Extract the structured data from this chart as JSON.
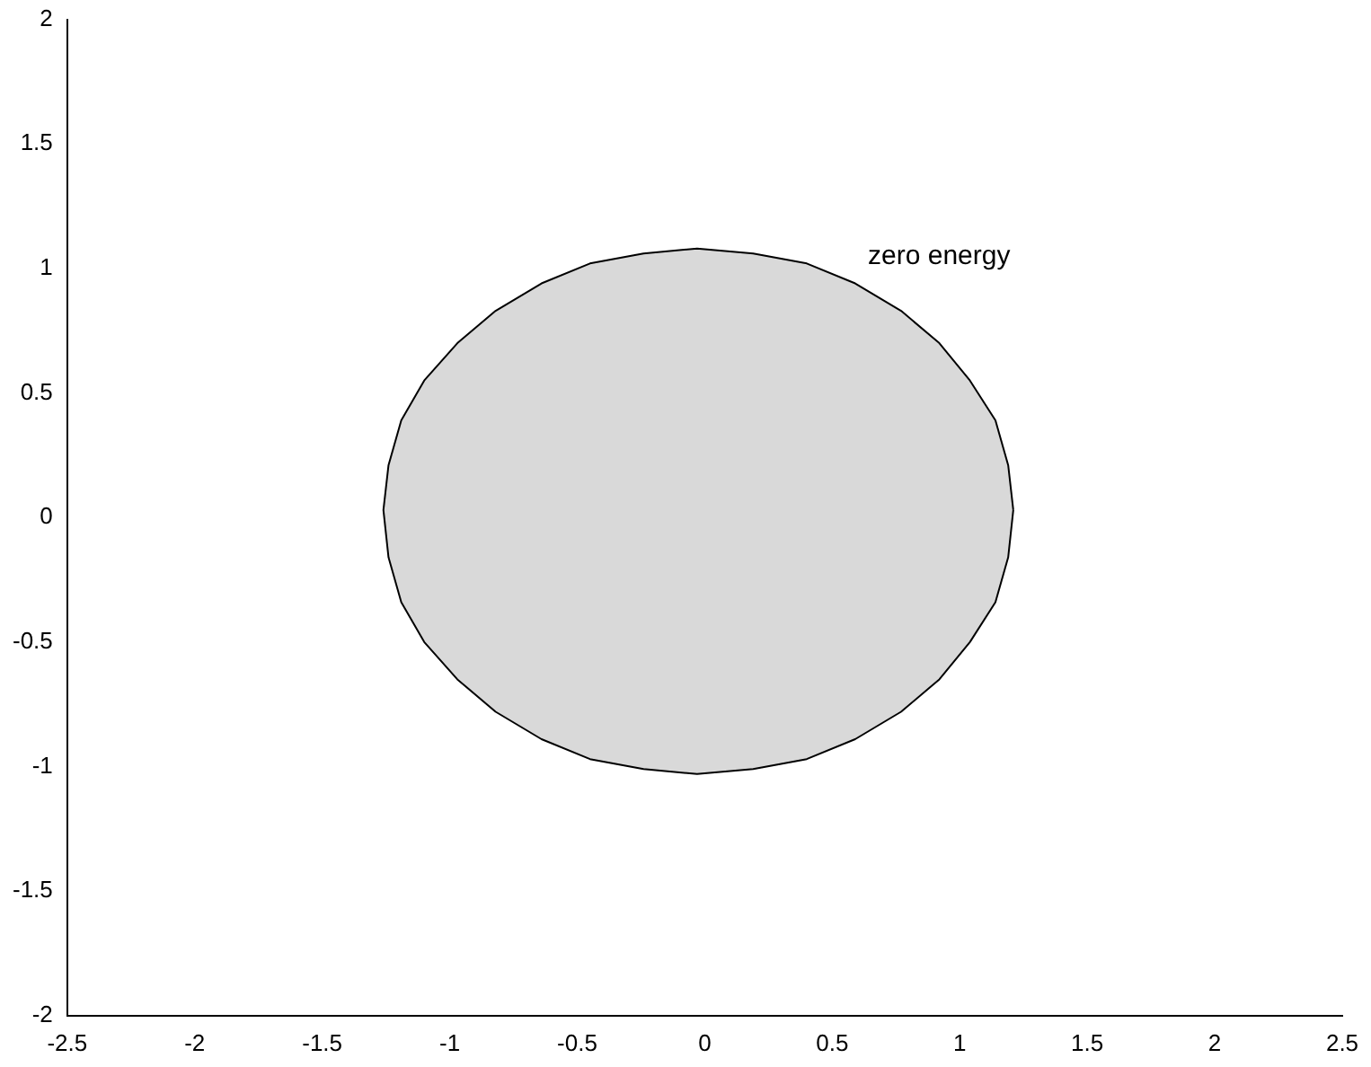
{
  "chart_data": {
    "type": "area",
    "x": [
      1.21,
      1.19,
      1.14,
      1.04,
      0.92,
      0.77,
      0.59,
      0.4,
      0.19,
      -0.03,
      -0.24,
      -0.45,
      -0.64,
      -0.82,
      -0.97,
      -1.1,
      -1.19,
      -1.24,
      -1.26,
      -1.24,
      -1.19,
      -1.1,
      -0.97,
      -0.82,
      -0.64,
      -0.45,
      -0.24,
      -0.03,
      0.19,
      0.4,
      0.59,
      0.77,
      0.92,
      1.04,
      1.14,
      1.19,
      1.21
    ],
    "series": [
      {
        "color": "#d9d9d9",
        "values": [
          0.03,
          0.21,
          0.39,
          0.55,
          0.7,
          0.83,
          0.94,
          1.02,
          1.06,
          1.08,
          1.06,
          1.02,
          0.94,
          0.83,
          0.7,
          0.55,
          0.39,
          0.21,
          0.03,
          -0.16,
          -0.34,
          -0.5,
          -0.65,
          -0.78,
          -0.89,
          -0.97,
          -1.01,
          -1.03,
          -1.01,
          -0.97,
          -0.89,
          -0.78,
          -0.65,
          -0.5,
          -0.34,
          -0.16,
          0.03
        ]
      }
    ],
    "xlim": [
      -2.5,
      2.5
    ],
    "xticks": [
      -2.5,
      -2,
      -1.5,
      -1,
      -0.5,
      0,
      0.5,
      1,
      1.5,
      2,
      2.5
    ],
    "ylim": [
      -2,
      2
    ],
    "yticks": [
      -2,
      -1.5,
      -1,
      -0.5,
      0,
      0.5,
      1,
      1.5,
      2
    ],
    "annotations": [
      "zero energy"
    ]
  }
}
